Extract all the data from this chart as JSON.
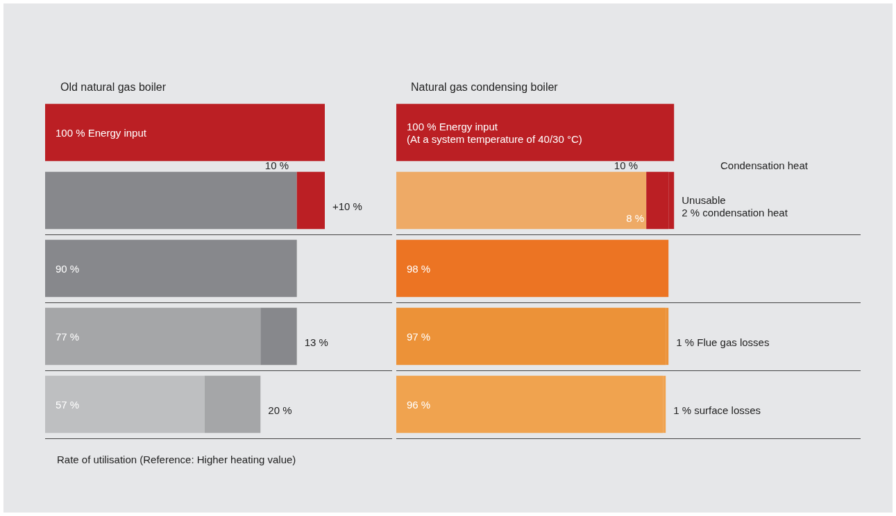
{
  "chart_data": [
    {
      "type": "bar",
      "orientation": "horizontal",
      "stacked": true,
      "grid": "y",
      "title": "Old natural gas boiler",
      "categories": [
        null,
        null,
        null,
        null,
        null
      ],
      "series": [
        {
          "colors": [
            "#bb1f24",
            "#87888c",
            "#87888c",
            "#a5a6a8",
            "#bebfc1"
          ],
          "values": [
            100,
            90,
            90,
            77,
            57
          ],
          "value_labels": [
            "100 % Energy input",
            null,
            "90 %",
            "77 %",
            "57 %"
          ]
        },
        {
          "colors": [
            "#bb1f24",
            "#bb1f24",
            "#bb1f24",
            "#87888c",
            "#a5a6a8"
          ],
          "values": [
            null,
            10,
            null,
            13,
            20
          ],
          "value_labels": [
            null,
            "+10 %",
            null,
            "13 %",
            "20 %"
          ]
        }
      ],
      "annotations": [
        "10 %",
        "Rate of utilisation (Reference: Higher heating value)"
      ]
    },
    {
      "type": "bar",
      "orientation": "horizontal",
      "stacked": true,
      "grid": "y",
      "title": "Natural gas condensing boiler",
      "categories": [
        null,
        null,
        null,
        null,
        null
      ],
      "series": [
        {
          "colors": [
            "#bb1f24",
            "#eeaa66",
            "#ec7423",
            "#ec9238",
            "#f0a34f"
          ],
          "values": [
            100,
            90,
            98,
            97,
            96
          ],
          "value_labels": [
            "100 % Energy input\n(At a system temperature of 40/30 °C)",
            null,
            "98 %",
            "97 %",
            "96 %"
          ]
        },
        {
          "colors": [
            "#bb1f24",
            "#bb1f24",
            "#bb1f24",
            "#ec9238",
            "#f0a34f"
          ],
          "values": [
            null,
            8,
            null,
            1,
            1
          ],
          "value_labels": [
            null,
            "8 %",
            null,
            "1 % Flue gas losses",
            "1 % surface losses"
          ]
        },
        {
          "colors": [
            "#bb1f24",
            "#bb1f24",
            "#bb1f24",
            "#bb1f24",
            "#bb1f24"
          ],
          "values": [
            null,
            2,
            null,
            null,
            null
          ],
          "value_labels": [
            null,
            "Unusable\n2 % condensation heat",
            null,
            null,
            null
          ]
        }
      ],
      "annotations": [
        "10 %",
        "Condensation heat"
      ]
    }
  ]
}
